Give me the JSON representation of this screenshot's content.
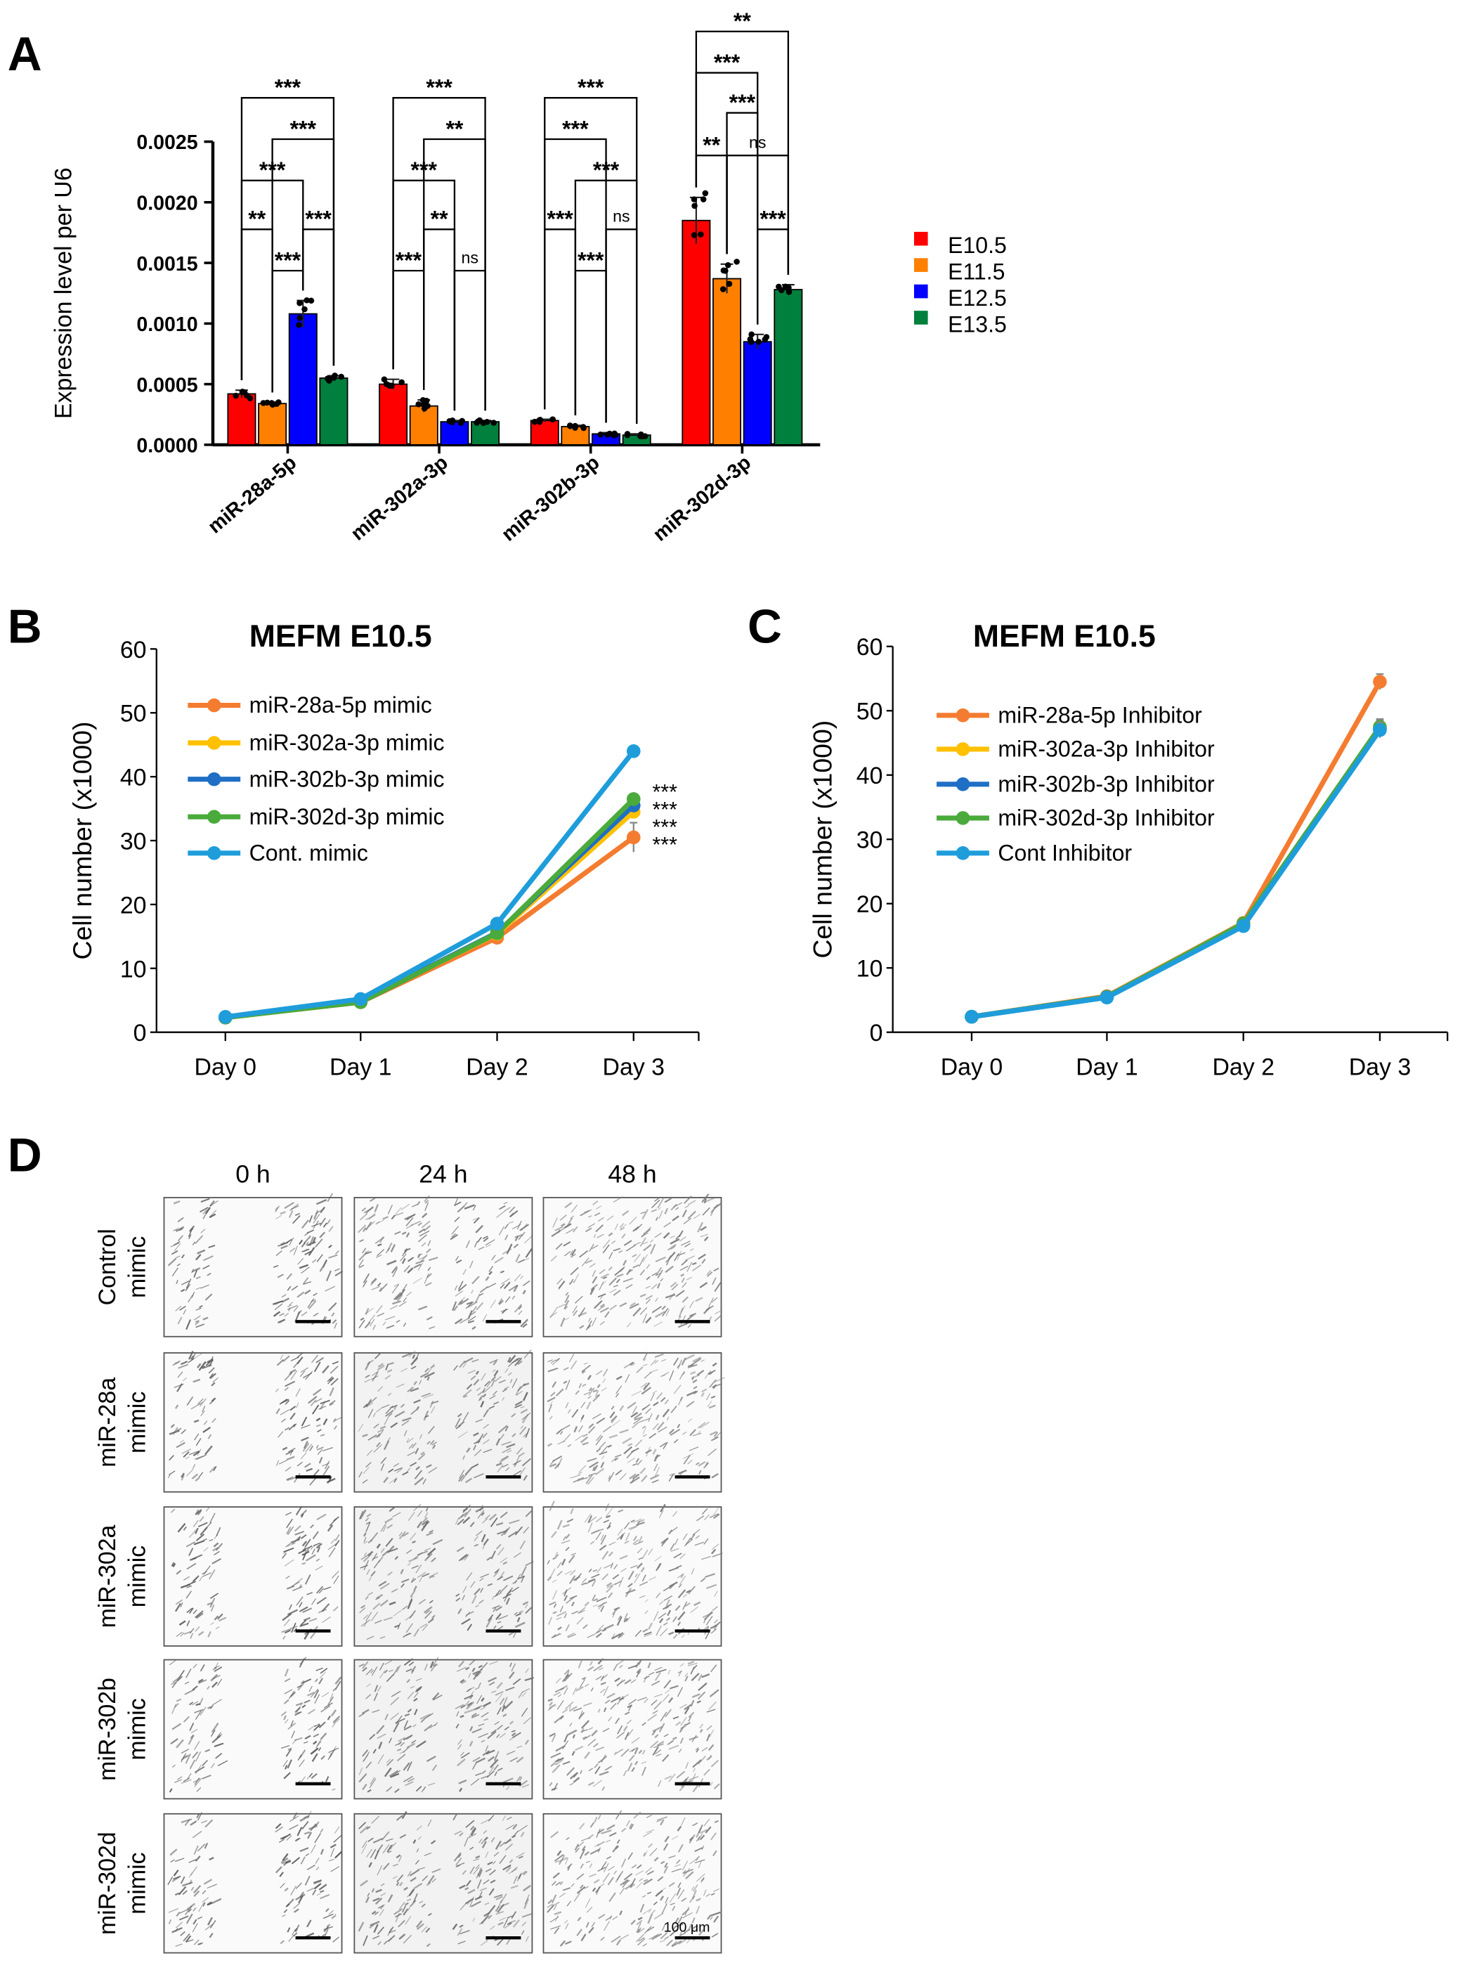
{
  "panel_labels": {
    "a": "A",
    "b": "B",
    "c": "C",
    "d": "D"
  },
  "chart_data": [
    {
      "panel": "A",
      "type": "bar",
      "title": "",
      "xlabel": "",
      "ylabel": "Expression level per U6",
      "ylim": [
        0,
        0.0025
      ],
      "yticks": [
        "0.0000",
        "0.0005",
        "0.0010",
        "0.0015",
        "0.0020",
        "0.0025"
      ],
      "categories": [
        "miR-28a-5p",
        "miR-302a-3p",
        "miR-302b-3p",
        "miR-302d-3p"
      ],
      "legend_position": "right",
      "series": [
        {
          "name": "E10.5",
          "color": "#FF0000",
          "values": [
            0.00042,
            0.0005,
            0.0002,
            0.00185
          ],
          "errors": [
            3e-05,
            4e-05,
            1e-05,
            0.00019
          ]
        },
        {
          "name": "E11.5",
          "color": "#FF8000",
          "values": [
            0.00034,
            0.00032,
            0.00015,
            0.00137
          ],
          "errors": [
            1e-05,
            5e-05,
            1e-05,
            0.00012
          ]
        },
        {
          "name": "E12.5",
          "color": "#0000FF",
          "values": [
            0.00108,
            0.00019,
            9e-05,
            0.00085
          ],
          "errors": [
            0.00011,
            1e-05,
            1e-05,
            6e-05
          ]
        },
        {
          "name": "E13.5",
          "color": "#00803C",
          "values": [
            0.00055,
            0.00019,
            8e-05,
            0.00128
          ],
          "errors": [
            2e-05,
            1e-05,
            1e-05,
            4e-05
          ]
        }
      ],
      "comparisons": [
        [
          [
            "E11.5",
            "E12.5",
            "***"
          ],
          [
            "E10.5",
            "E11.5",
            "**"
          ],
          [
            "E12.5",
            "E13.5",
            "***"
          ],
          [
            "E10.5",
            "E12.5",
            "***"
          ],
          [
            "E11.5",
            "E13.5",
            "***"
          ],
          [
            "E10.5",
            "E13.5",
            "***"
          ]
        ],
        [
          [
            "E10.5",
            "E11.5",
            "***"
          ],
          [
            "E12.5",
            "E13.5",
            "ns"
          ],
          [
            "E11.5",
            "E12.5",
            "**"
          ],
          [
            "E10.5",
            "E12.5",
            "***"
          ],
          [
            "E11.5",
            "E13.5",
            "**"
          ],
          [
            "E10.5",
            "E13.5",
            "***"
          ]
        ],
        [
          [
            "E11.5",
            "E12.5",
            "***"
          ],
          [
            "E10.5",
            "E11.5",
            "***"
          ],
          [
            "E12.5",
            "E13.5",
            "ns"
          ],
          [
            "E11.5",
            "E13.5",
            "***"
          ],
          [
            "E10.5",
            "E12.5",
            "***"
          ],
          [
            "E10.5",
            "E13.5",
            "***"
          ]
        ],
        [
          [
            "E12.5",
            "E13.5",
            "***"
          ],
          [
            "E10.5",
            "E11.5",
            "**"
          ],
          [
            "E11.5",
            "E13.5",
            "ns"
          ],
          [
            "E11.5",
            "E12.5",
            "***"
          ],
          [
            "E10.5",
            "E12.5",
            "***"
          ],
          [
            "E10.5",
            "E13.5",
            "**"
          ]
        ]
      ]
    },
    {
      "panel": "B",
      "type": "line",
      "title": "MEFM E10.5",
      "xlabel": "",
      "ylabel": "Cell number (x1000)",
      "ylim": [
        0,
        60
      ],
      "yticks": [
        "0",
        "10",
        "20",
        "30",
        "40",
        "50",
        "60"
      ],
      "categories": [
        "Day 0",
        "Day 1",
        "Day 2",
        "Day 3"
      ],
      "legend_position": "top-left",
      "series": [
        {
          "name": "miR-28a-5p mimic",
          "color": "#F47C30",
          "values": [
            2.3,
            4.7,
            14.8,
            30.5
          ],
          "errors": [
            0.3,
            0.3,
            0.8,
            2.3
          ]
        },
        {
          "name": "miR-302a-3p mimic",
          "color": "#FFC000",
          "values": [
            2.3,
            4.8,
            15.4,
            34.5
          ],
          "errors": [
            0.3,
            0.3,
            0.6,
            0.8
          ]
        },
        {
          "name": "miR-302b-3p mimic",
          "color": "#1F6FC5",
          "values": [
            2.3,
            4.8,
            15.6,
            35.5
          ],
          "errors": [
            0.3,
            0.3,
            0.6,
            0.8
          ]
        },
        {
          "name": "miR-302d-3p mimic",
          "color": "#4AAA3C",
          "values": [
            2.3,
            4.7,
            15.5,
            36.5
          ],
          "errors": [
            0.3,
            0.3,
            0.6,
            0.8
          ]
        },
        {
          "name": "Cont. mimic",
          "color": "#1F9DDB",
          "values": [
            2.4,
            5.2,
            17.0,
            44.0
          ],
          "errors": [
            0.3,
            0.3,
            0.6,
            0.5
          ]
        }
      ],
      "annotations": [
        "***",
        "***",
        "***",
        "***"
      ]
    },
    {
      "panel": "C",
      "type": "line",
      "title": "MEFM E10.5",
      "xlabel": "",
      "ylabel": "Cell number (x1000)",
      "ylim": [
        0,
        60
      ],
      "yticks": [
        "0",
        "10",
        "20",
        "30",
        "40",
        "50",
        "60"
      ],
      "categories": [
        "Day 0",
        "Day 1",
        "Day 2",
        "Day 3"
      ],
      "legend_position": "top-left",
      "series": [
        {
          "name": "miR-28a-5p Inhibitor",
          "color": "#F47C30",
          "values": [
            2.4,
            5.6,
            17.0,
            54.5
          ],
          "errors": [
            0.8,
            0.8,
            0.8,
            1.2
          ]
        },
        {
          "name": "miR-302a-3p Inhibitor",
          "color": "#FFC000",
          "values": [
            2.4,
            5.5,
            16.9,
            47.3
          ],
          "errors": [
            0.8,
            0.8,
            0.8,
            1.2
          ]
        },
        {
          "name": "miR-302b-3p Inhibitor",
          "color": "#1F6FC5",
          "values": [
            2.4,
            5.5,
            16.8,
            47.2
          ],
          "errors": [
            0.8,
            0.8,
            0.8,
            1.2
          ]
        },
        {
          "name": "miR-302d-3p Inhibitor",
          "color": "#4AAA3C",
          "values": [
            2.4,
            5.5,
            16.9,
            47.5
          ],
          "errors": [
            0.8,
            0.8,
            0.8,
            1.2
          ]
        },
        {
          "name": "Cont Inhibitor",
          "color": "#1F9DDB",
          "values": [
            2.4,
            5.4,
            16.5,
            47.0
          ],
          "errors": [
            0.8,
            0.8,
            0.8,
            1.2
          ]
        }
      ]
    }
  ],
  "panel_d": {
    "columns": [
      "0 h",
      "24 h",
      "48 h"
    ],
    "rows": [
      [
        "Control",
        "mimic"
      ],
      [
        "miR-28a",
        "mimic"
      ],
      [
        "miR-302a",
        "mimic"
      ],
      [
        "miR-302b",
        "mimic"
      ],
      [
        "miR-302d",
        "mimic"
      ]
    ],
    "scale_bar_label": "100 μm"
  }
}
